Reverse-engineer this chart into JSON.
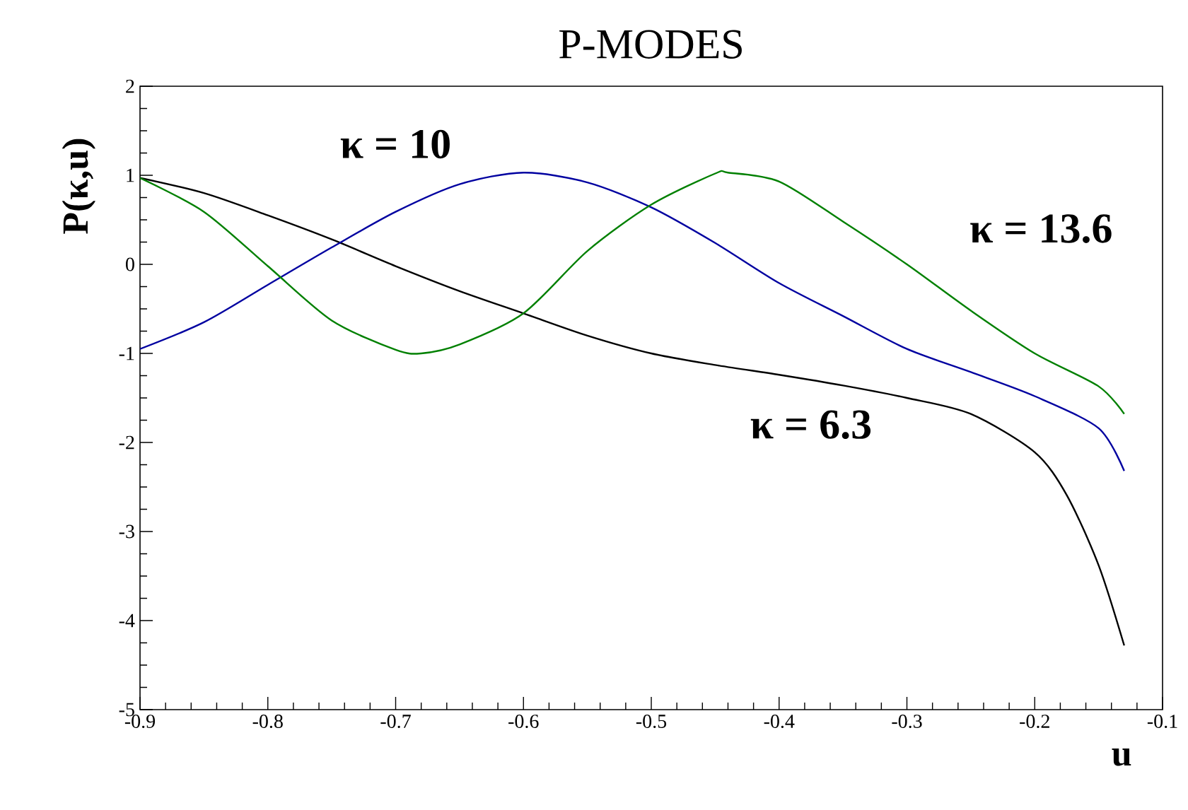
{
  "chart_data": {
    "type": "line",
    "title": "P-MODES",
    "xlabel": "u",
    "ylabel": "P(κ,u)",
    "xlim": [
      -0.9,
      -0.1
    ],
    "xticks": [
      -0.9,
      -0.8,
      -0.7,
      -0.6,
      -0.5,
      -0.4,
      -0.3,
      -0.2,
      -0.1
    ],
    "ylim": [
      -5,
      2
    ],
    "yticks": [
      -5,
      -4,
      -3,
      -2,
      -1,
      0,
      1,
      2
    ],
    "grid": false,
    "legend": false,
    "marker": "none",
    "line_style": "solid",
    "series": [
      {
        "name": "κ = 6.3",
        "color": "#000000",
        "x": [
          -0.9,
          -0.85,
          -0.8,
          -0.75,
          -0.7,
          -0.65,
          -0.6,
          -0.55,
          -0.5,
          -0.45,
          -0.4,
          -0.35,
          -0.3,
          -0.25,
          -0.2,
          -0.175,
          -0.15,
          -0.13
        ],
        "values": [
          0.97,
          0.8,
          0.55,
          0.28,
          -0.02,
          -0.3,
          -0.55,
          -0.8,
          -1.0,
          -1.13,
          -1.24,
          -1.36,
          -1.5,
          -1.68,
          -2.11,
          -2.59,
          -3.38,
          -4.28
        ]
      },
      {
        "name": "κ = 10",
        "color": "#0000a0",
        "x": [
          -0.9,
          -0.85,
          -0.8,
          -0.75,
          -0.7,
          -0.65,
          -0.6,
          -0.55,
          -0.5,
          -0.45,
          -0.4,
          -0.35,
          -0.3,
          -0.25,
          -0.2,
          -0.15,
          -0.13
        ],
        "values": [
          -0.95,
          -0.65,
          -0.23,
          0.19,
          0.59,
          0.9,
          1.03,
          0.92,
          0.64,
          0.24,
          -0.21,
          -0.58,
          -0.95,
          -1.21,
          -1.48,
          -1.84,
          -2.32
        ]
      },
      {
        "name": "κ = 13.6",
        "color": "#008000",
        "x": [
          -0.9,
          -0.85,
          -0.8,
          -0.75,
          -0.7,
          -0.68,
          -0.65,
          -0.6,
          -0.55,
          -0.5,
          -0.45,
          -0.44,
          -0.4,
          -0.35,
          -0.3,
          -0.25,
          -0.2,
          -0.15,
          -0.13
        ],
        "values": [
          0.97,
          0.59,
          -0.02,
          -0.63,
          -0.96,
          -1.0,
          -0.9,
          -0.55,
          0.15,
          0.67,
          1.02,
          1.03,
          0.93,
          0.48,
          0.0,
          -0.52,
          -1.0,
          -1.37,
          -1.68
        ]
      }
    ]
  }
}
